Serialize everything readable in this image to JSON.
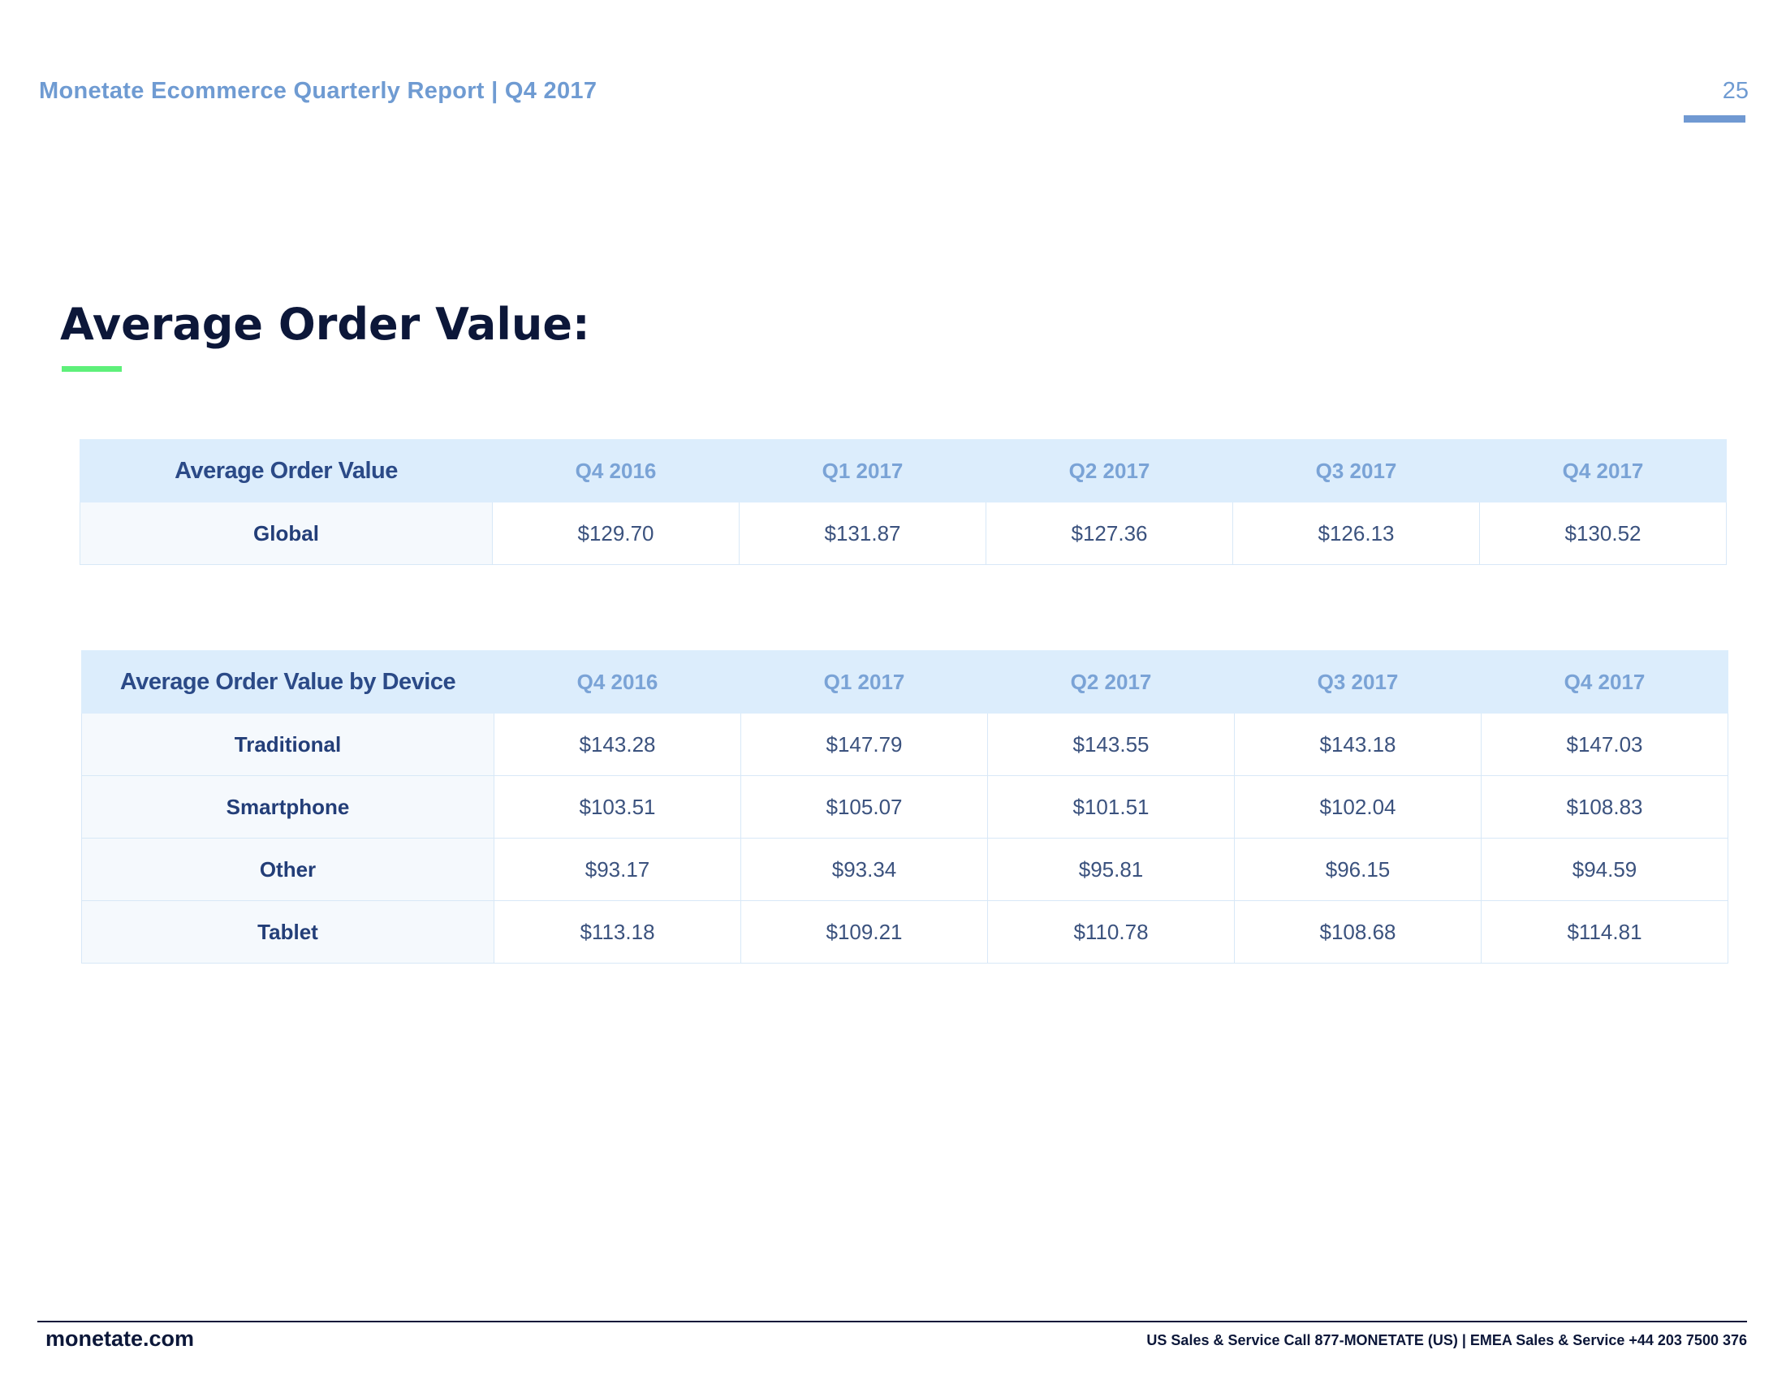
{
  "header": {
    "report_title": "Monetate Ecommerce Quarterly Report | Q4 2017",
    "page_number": "25"
  },
  "section": {
    "title": "Average Order Value:"
  },
  "table_global": {
    "header": [
      "Average Order Value",
      "Q4 2016",
      "Q1 2017",
      "Q2 2017",
      "Q3 2017",
      "Q4 2017"
    ],
    "rows": [
      {
        "label": "Global",
        "values": [
          "$129.70",
          "$131.87",
          "$127.36",
          "$126.13",
          "$130.52"
        ]
      }
    ]
  },
  "table_device": {
    "header": [
      "Average Order Value by Device",
      "Q4 2016",
      "Q1 2017",
      "Q2 2017",
      "Q3 2017",
      "Q4 2017"
    ],
    "rows": [
      {
        "label": "Traditional",
        "values": [
          "$143.28",
          "$147.79",
          "$143.55",
          "$143.18",
          "$147.03"
        ]
      },
      {
        "label": "Smartphone",
        "values": [
          "$103.51",
          "$105.07",
          "$101.51",
          "$102.04",
          "$108.83"
        ]
      },
      {
        "label": "Other",
        "values": [
          "$93.17",
          "$93.34",
          "$95.81",
          "$96.15",
          "$94.59"
        ]
      },
      {
        "label": "Tablet",
        "values": [
          "$113.18",
          "$109.21",
          "$110.78",
          "$108.68",
          "$114.81"
        ]
      }
    ]
  },
  "footer": {
    "site": "monetate.com",
    "contact": "US Sales & Service Call 877-MONETATE (US) | EMEA Sales & Service +44 203 7500 376"
  },
  "colors": {
    "accent_green": "#5ef07a",
    "header_blue": "#6f9bd2",
    "table_header_bg": "#dcedfc",
    "navy": "#0c1739"
  }
}
